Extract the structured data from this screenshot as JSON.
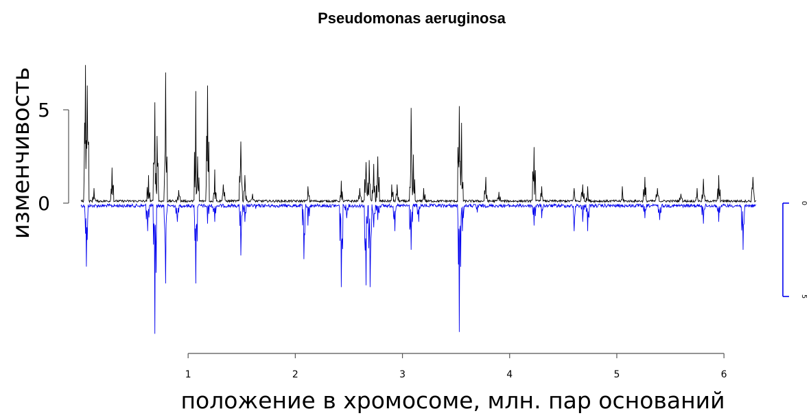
{
  "chart_data": {
    "type": "line",
    "title": "Pseudomonas aeruginosa",
    "xlabel": "положение в хромосоме, млн. пар оснований",
    "ylabel": "изменчивость",
    "xlim": [
      0,
      6.3
    ],
    "ylim": [
      -7,
      7.5
    ],
    "x_ticks": [
      "1",
      "2",
      "3",
      "4",
      "5",
      "6"
    ],
    "y_ticks": [
      "0",
      "5"
    ],
    "right_axis_ticks": [
      "0",
      "5"
    ],
    "grid": false,
    "colors": {
      "upper": "#000000",
      "lower": "#0000ee",
      "axis": "#555555"
    },
    "series": [
      {
        "color": "#000000",
        "values": [
          [
            0.04,
            7.4
          ],
          [
            0.06,
            6.3
          ],
          [
            0.12,
            0.8
          ],
          [
            0.29,
            1.9
          ],
          [
            0.63,
            1.5
          ],
          [
            0.69,
            5.4
          ],
          [
            0.71,
            3.6
          ],
          [
            0.79,
            7.0
          ],
          [
            0.91,
            0.7
          ],
          [
            1.07,
            6.0
          ],
          [
            1.09,
            2.5
          ],
          [
            1.18,
            6.3
          ],
          [
            1.25,
            1.8
          ],
          [
            1.33,
            1.0
          ],
          [
            1.49,
            3.3
          ],
          [
            1.53,
            1.5
          ],
          [
            1.6,
            0.5
          ],
          [
            2.12,
            0.9
          ],
          [
            2.43,
            1.2
          ],
          [
            2.6,
            0.8
          ],
          [
            2.66,
            2.2
          ],
          [
            2.69,
            2.3
          ],
          [
            2.73,
            2.1
          ],
          [
            2.77,
            2.5
          ],
          [
            2.9,
            1.0
          ],
          [
            2.95,
            1.0
          ],
          [
            3.08,
            5.1
          ],
          [
            3.1,
            2.6
          ],
          [
            3.2,
            0.8
          ],
          [
            3.53,
            5.2
          ],
          [
            3.55,
            4.3
          ],
          [
            3.78,
            1.4
          ],
          [
            3.9,
            0.6
          ],
          [
            4.23,
            3.0
          ],
          [
            4.3,
            0.9
          ],
          [
            4.6,
            0.8
          ],
          [
            4.68,
            1.0
          ],
          [
            4.73,
            0.9
          ],
          [
            5.05,
            0.9
          ],
          [
            5.26,
            1.4
          ],
          [
            5.38,
            0.8
          ],
          [
            5.6,
            0.5
          ],
          [
            5.75,
            0.8
          ],
          [
            5.81,
            1.3
          ],
          [
            5.95,
            1.5
          ],
          [
            6.27,
            1.4
          ]
        ]
      },
      {
        "color": "#0000ee",
        "values": [
          [
            0.05,
            -3.4
          ],
          [
            0.62,
            -1.5
          ],
          [
            0.69,
            -7.0
          ],
          [
            0.79,
            -4.3
          ],
          [
            0.9,
            -1.0
          ],
          [
            1.07,
            -4.3
          ],
          [
            1.18,
            -1.1
          ],
          [
            1.25,
            -1.0
          ],
          [
            1.49,
            -2.8
          ],
          [
            1.53,
            -1.0
          ],
          [
            1.63,
            -0.3
          ],
          [
            2.08,
            -3.0
          ],
          [
            2.12,
            -1.2
          ],
          [
            2.43,
            -4.5
          ],
          [
            2.48,
            -0.8
          ],
          [
            2.66,
            -4.4
          ],
          [
            2.7,
            -4.5
          ],
          [
            2.73,
            -1.3
          ],
          [
            2.77,
            -0.9
          ],
          [
            2.93,
            -1.5
          ],
          [
            3.08,
            -2.5
          ],
          [
            3.15,
            -1.0
          ],
          [
            3.53,
            -6.9
          ],
          [
            3.56,
            -1.5
          ],
          [
            3.7,
            -0.5
          ],
          [
            4.23,
            -1.2
          ],
          [
            4.3,
            -0.8
          ],
          [
            4.6,
            -1.5
          ],
          [
            4.68,
            -1.0
          ],
          [
            4.73,
            -1.5
          ],
          [
            5.26,
            -0.8
          ],
          [
            5.4,
            -0.9
          ],
          [
            5.81,
            -1.1
          ],
          [
            5.95,
            -1.0
          ],
          [
            6.18,
            -2.5
          ]
        ]
      }
    ]
  }
}
